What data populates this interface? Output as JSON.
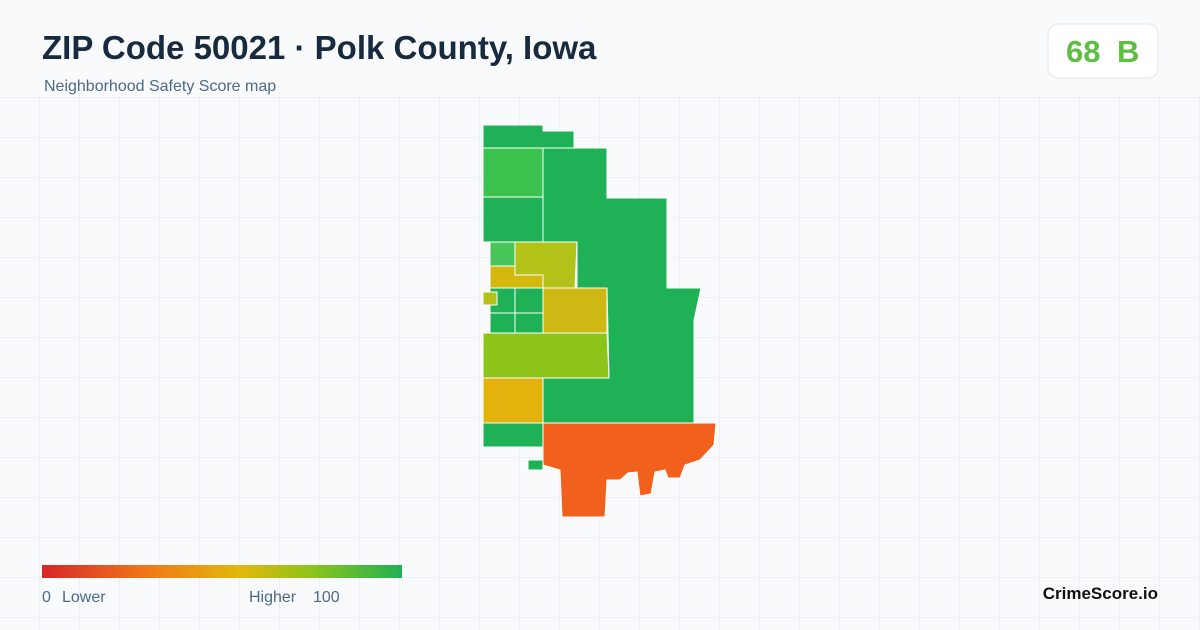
{
  "header": {
    "title": "ZIP Code 50021 · Polk County, Iowa",
    "subtitle": "Neighborhood Safety Score map"
  },
  "score": {
    "value": "68",
    "grade": "B"
  },
  "legend": {
    "min": "0",
    "min_label": "Lower",
    "max_label": "Higher",
    "max": "100"
  },
  "brand": "CrimeScore.io"
}
